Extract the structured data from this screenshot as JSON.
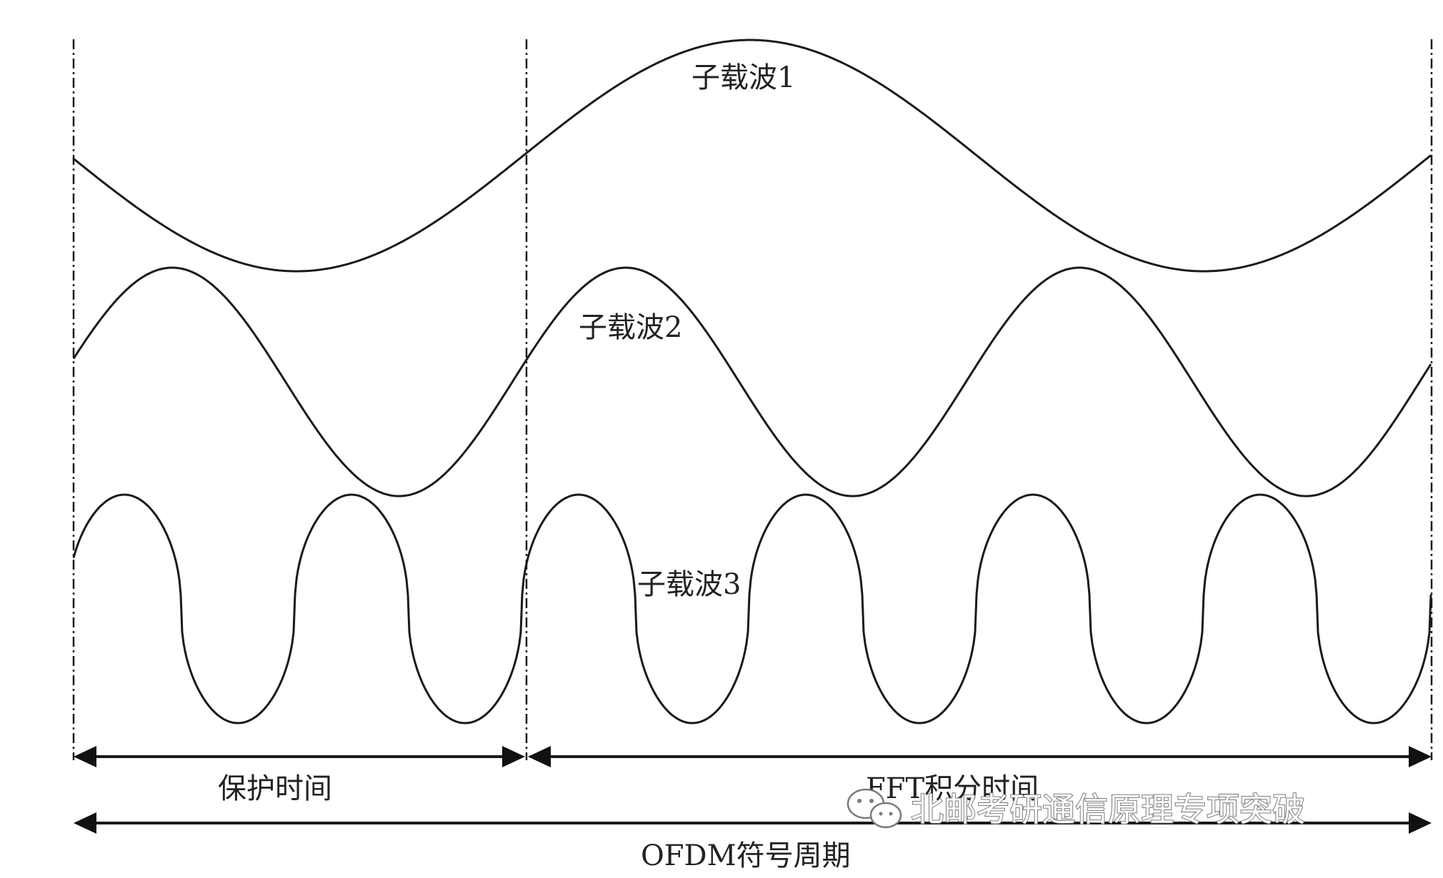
{
  "labels": {
    "subcarrier1": "子载波1",
    "subcarrier2": "子载波2",
    "subcarrier3": "子载波3",
    "guard_time": "保护时间",
    "fft_time": "FFT积分时间",
    "ofdm_period": "OFDM符号周期"
  },
  "watermark": {
    "text": "北邮考研通信原理专项突破"
  },
  "colors": {
    "stroke": "#1a1a1a",
    "text": "#222222"
  },
  "icons": {
    "watermark": "wechat-icon"
  }
}
